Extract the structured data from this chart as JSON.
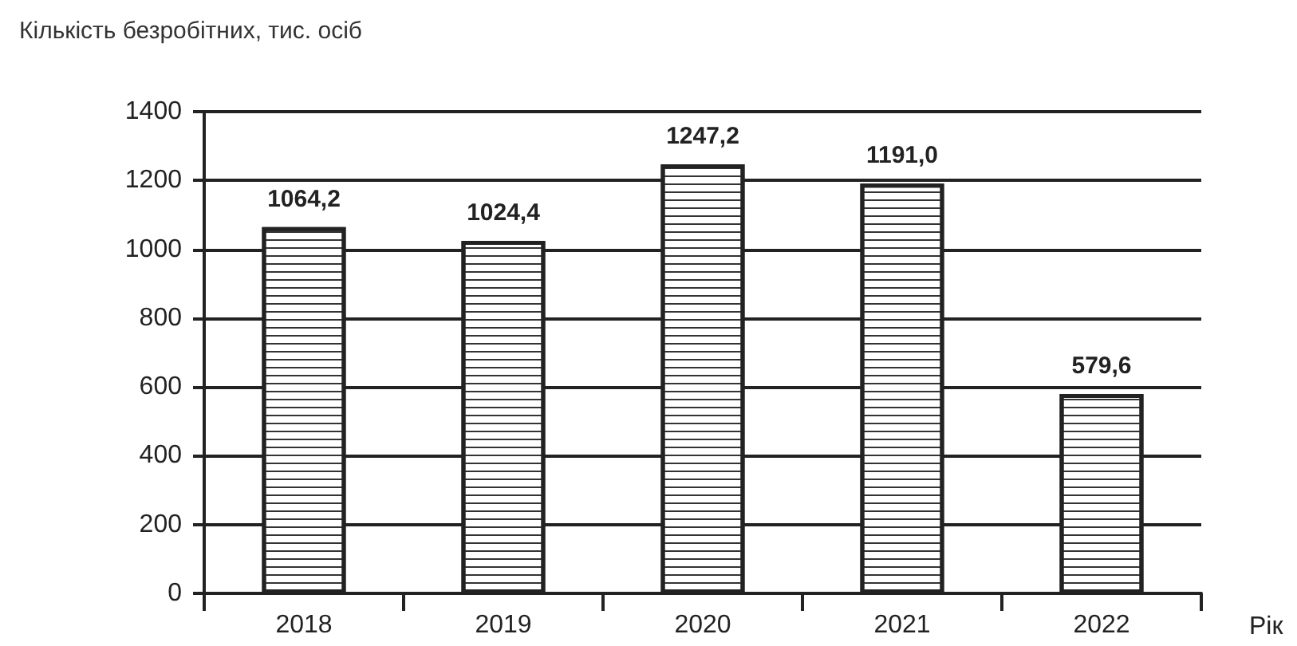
{
  "chart_data": {
    "type": "bar",
    "ylabel": "Кількість безробітних, тис. осіб",
    "xlabel": "Рік",
    "categories": [
      "2018",
      "2019",
      "2020",
      "2021",
      "2022"
    ],
    "values": [
      1064.2,
      1024.4,
      1247.2,
      1191.0,
      579.6
    ],
    "value_labels": [
      "1064,2",
      "1024,4",
      "1247,2",
      "1191,0",
      "579,6"
    ],
    "color": "#ffffff",
    "ylim": [
      0,
      1400
    ],
    "yticks": [
      0,
      200,
      400,
      600,
      800,
      1000,
      1200,
      1400
    ],
    "grid": "y"
  }
}
